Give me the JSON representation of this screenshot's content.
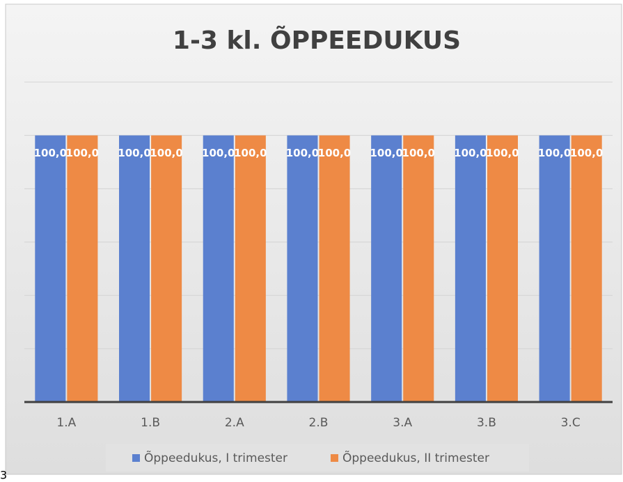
{
  "chart_data": {
    "type": "bar",
    "title": "1-3 kl. ÕPPEEDUKUS",
    "categories": [
      "1.A",
      "1.B",
      "2.A",
      "2.B",
      "3.A",
      "3.B",
      "3.C"
    ],
    "series": [
      {
        "name": "Õppeedukus, I trimester",
        "color": "#5b80cf",
        "values": [
          100,
          100,
          100,
          100,
          100,
          100,
          100
        ],
        "value_labels": [
          "100,0",
          "100,0",
          "100,0",
          "100,0",
          "100,0",
          "100,0",
          "100,0"
        ]
      },
      {
        "name": "Õppeedukus, II trimester",
        "color": "#ee8a45",
        "values": [
          100,
          100,
          100,
          100,
          100,
          100,
          100
        ],
        "value_labels": [
          "100,0",
          "100,0",
          "100,0",
          "100,0",
          "100,0",
          "100,0",
          "100,0"
        ]
      }
    ],
    "ylim": [
      0,
      120
    ],
    "yticks": [
      0,
      20,
      40,
      60,
      80,
      100,
      120
    ],
    "grid": true,
    "legend": "bottom",
    "annotation": "3"
  }
}
